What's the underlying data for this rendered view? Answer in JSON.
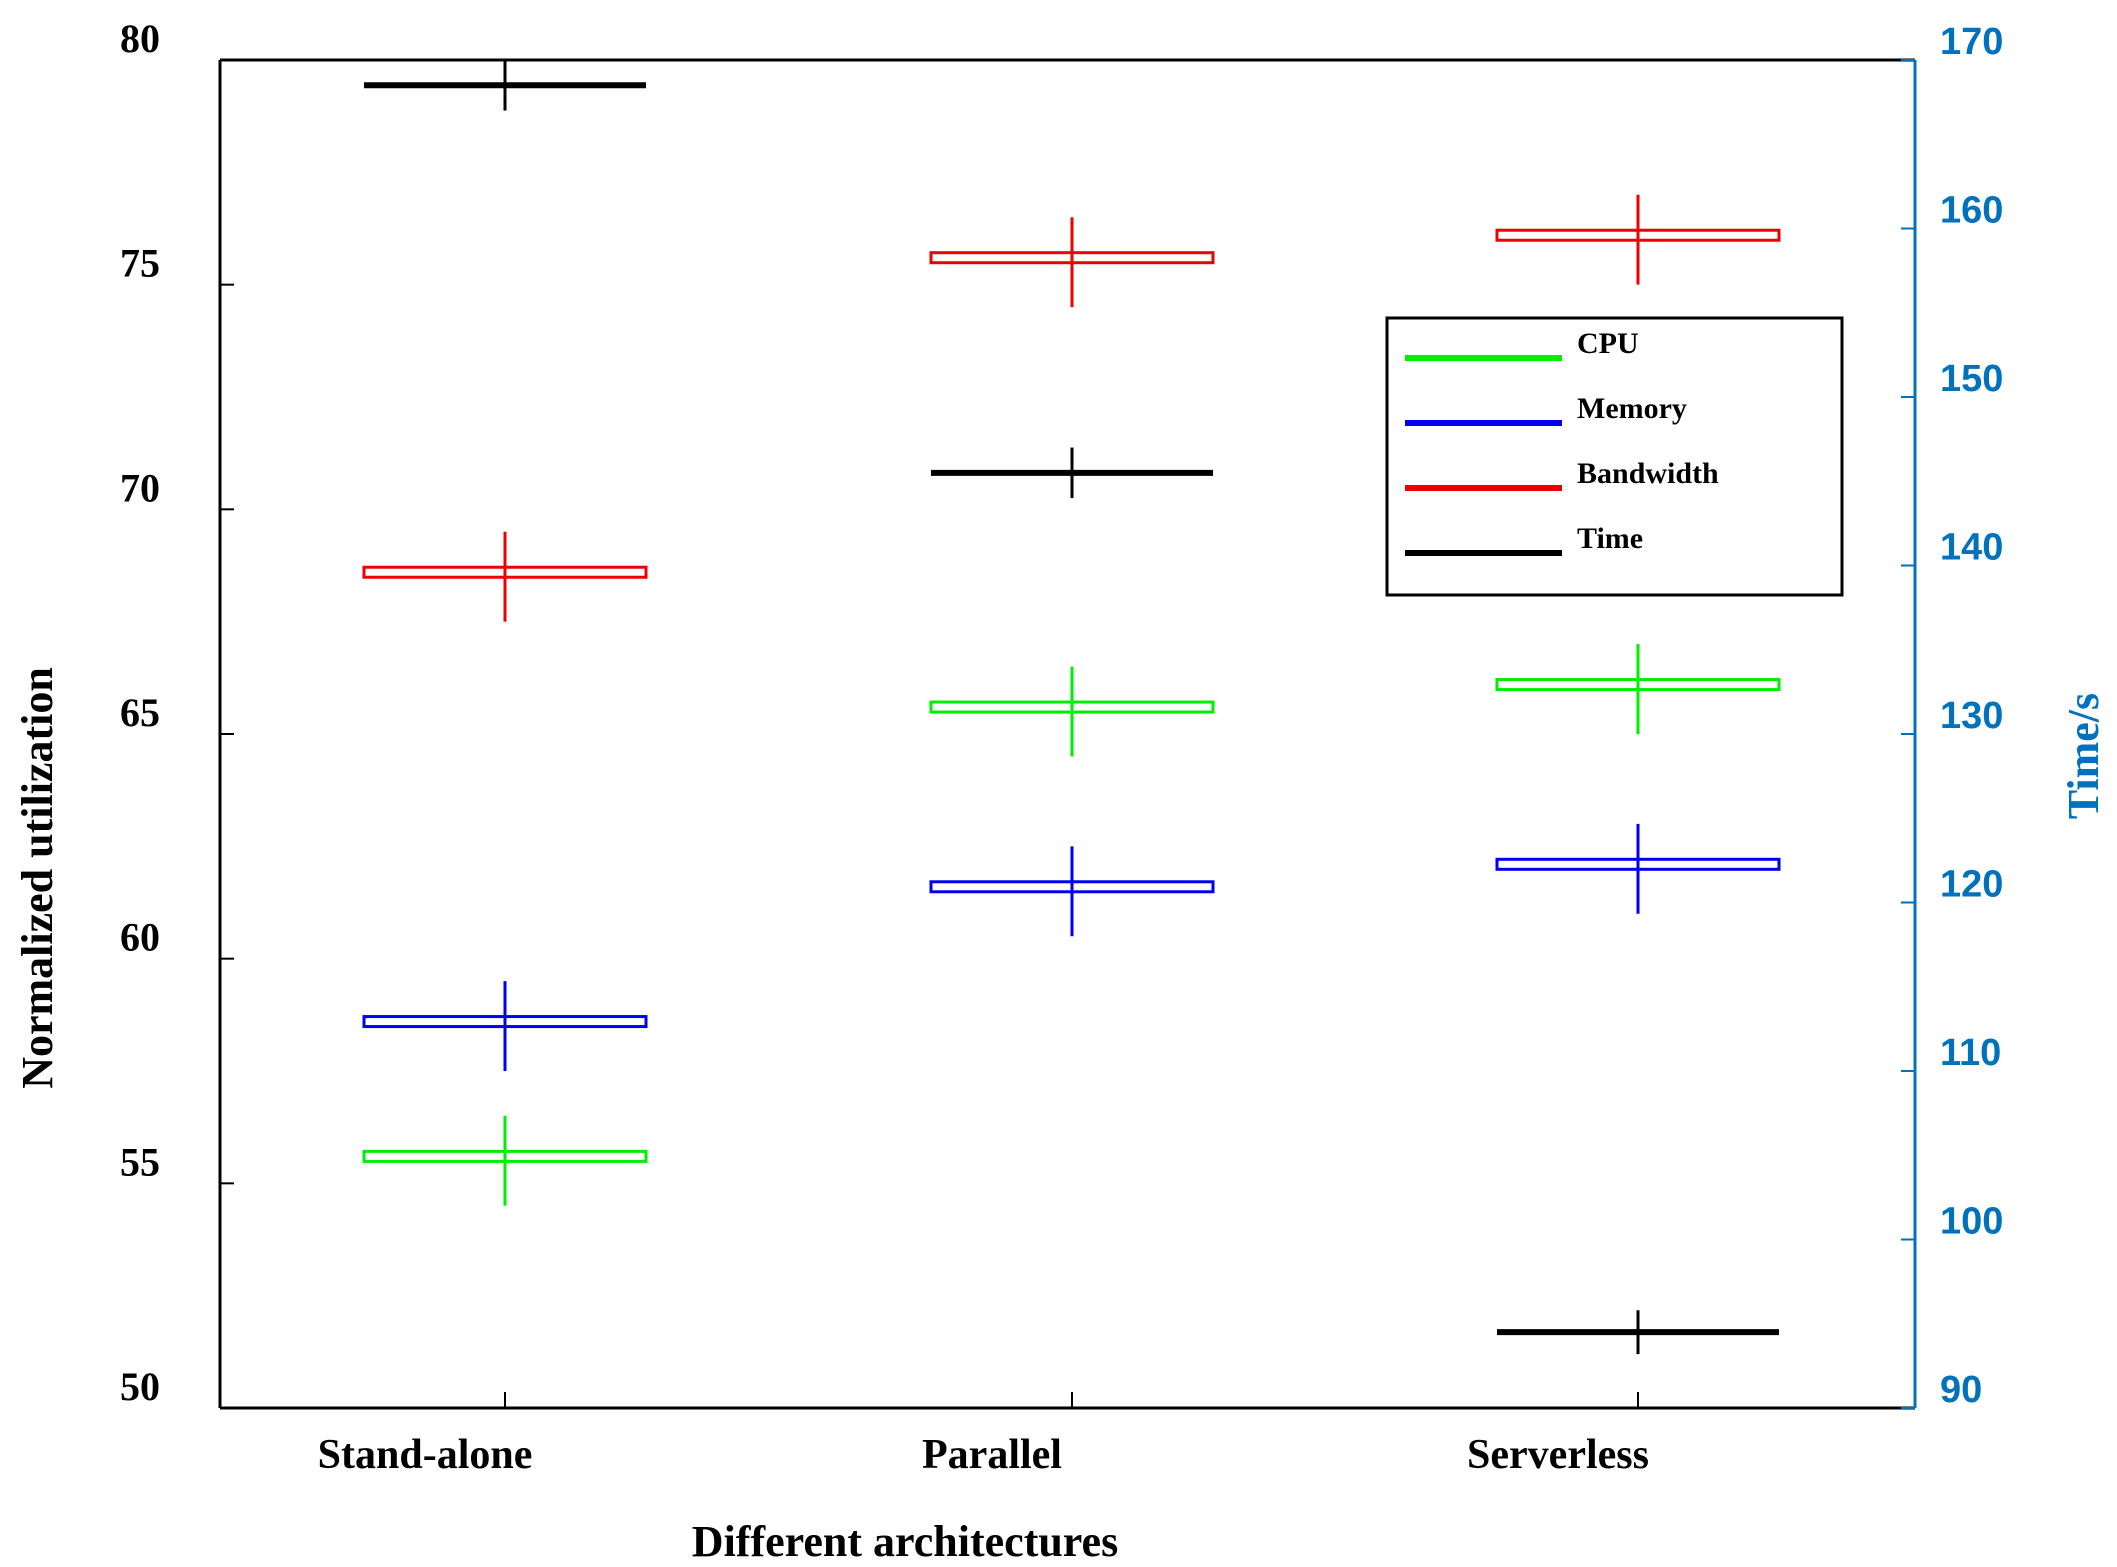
{
  "chart_data": {
    "type": "boxplot",
    "xlabel": "Different architectures",
    "ylabel": "Normalized utilization",
    "ylabel_right": "Time/s",
    "categories": [
      "Stand-alone",
      "Parallel",
      "Serverless"
    ],
    "ylim": [
      50,
      80
    ],
    "ylim_right": [
      90,
      170
    ],
    "yticks": [
      50,
      55,
      60,
      65,
      70,
      75,
      80
    ],
    "yticks_right": [
      90,
      100,
      110,
      120,
      130,
      140,
      150,
      160,
      170
    ],
    "legend_position": "upper-right",
    "series": [
      {
        "name": "CPU",
        "color": "#00ee00",
        "axis": "left",
        "box": true,
        "values": [
          55.6,
          65.6,
          66.1
        ],
        "lows": [
          54.5,
          64.5,
          65.0
        ],
        "highs": [
          56.5,
          66.5,
          67.0
        ]
      },
      {
        "name": "Memory",
        "color": "#0000ee",
        "axis": "left",
        "box": true,
        "values": [
          58.6,
          61.6,
          62.1
        ],
        "lows": [
          57.5,
          60.5,
          61.0
        ],
        "highs": [
          59.5,
          62.5,
          63.0
        ]
      },
      {
        "name": "Bandwidth",
        "color": "#ee0000",
        "axis": "left",
        "box": true,
        "values": [
          68.6,
          75.6,
          76.1
        ],
        "lows": [
          67.5,
          74.5,
          75.0
        ],
        "highs": [
          69.5,
          76.5,
          77.0
        ]
      },
      {
        "name": "Time",
        "color": "#000000",
        "axis": "right",
        "box": false,
        "values": [
          168.5,
          145.5,
          94.5
        ],
        "lows": [
          167.0,
          144.0,
          93.2
        ],
        "highs": [
          170.0,
          147.0,
          95.8
        ]
      }
    ]
  }
}
